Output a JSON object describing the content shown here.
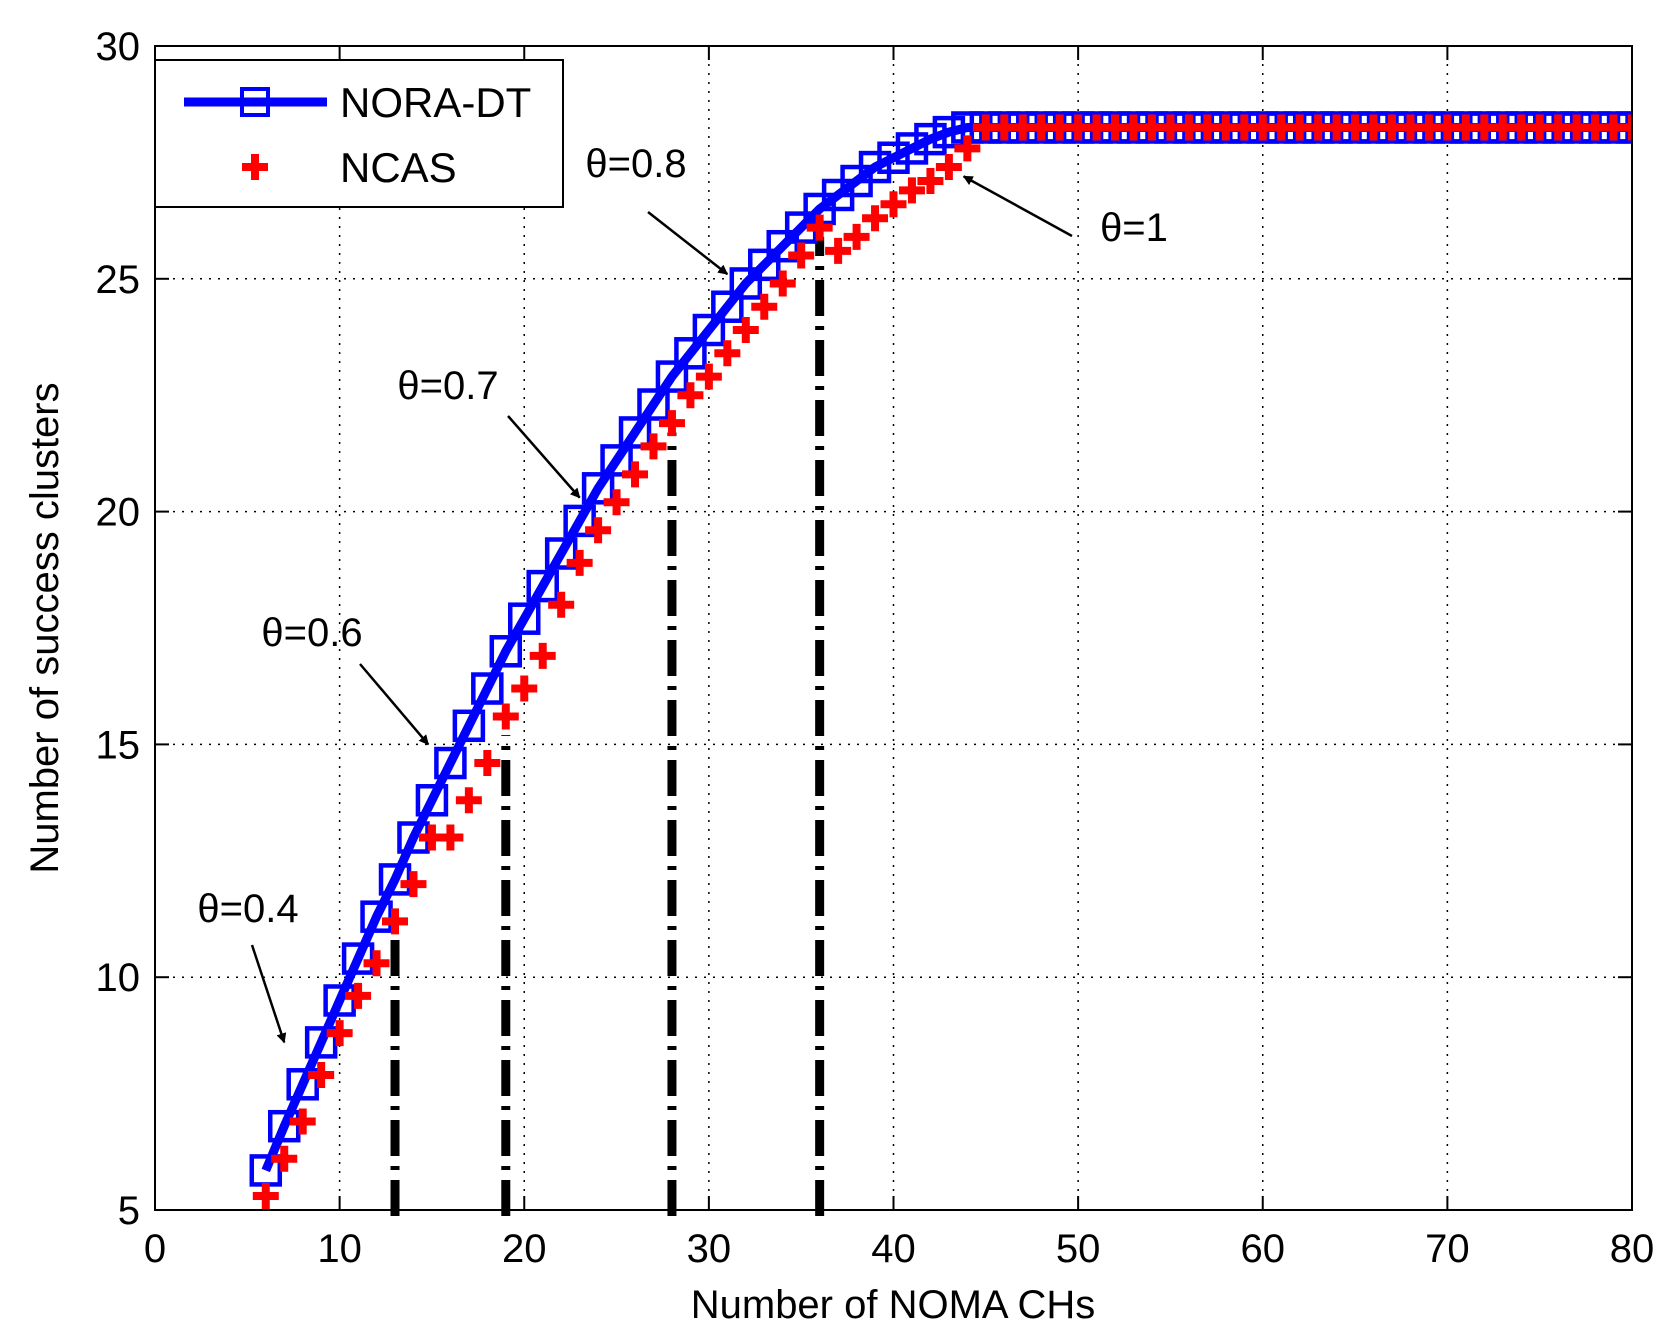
{
  "chart_data": {
    "type": "line",
    "title": "",
    "xlabel": "Number of NOMA CHs",
    "ylabel": "Number of success clusters",
    "xlim": [
      0,
      80
    ],
    "ylim": [
      5,
      30
    ],
    "xticks": [
      0,
      10,
      20,
      30,
      40,
      50,
      60,
      70,
      80
    ],
    "yticks": [
      5,
      10,
      15,
      20,
      25,
      30
    ],
    "grid": true,
    "legend_position": "top-left",
    "series": [
      {
        "name": "NORA-DT",
        "color": "#0000ff",
        "marker": "square",
        "x": [
          6,
          7,
          8,
          9,
          10,
          11,
          12,
          13,
          14,
          15,
          16,
          17,
          18,
          19,
          20,
          21,
          22,
          23,
          24,
          25,
          26,
          27,
          28,
          29,
          30,
          31,
          32,
          33,
          34,
          35,
          36,
          37,
          38,
          39,
          40,
          41,
          42,
          43,
          44,
          45,
          46,
          47,
          48,
          49,
          50,
          51,
          52,
          53,
          54,
          55,
          56,
          57,
          58,
          59,
          60,
          61,
          62,
          63,
          64,
          65,
          66,
          67,
          68,
          69,
          70,
          71,
          72,
          73,
          74,
          75,
          76,
          77,
          78,
          79,
          80
        ],
        "y": [
          5.85,
          6.8,
          7.7,
          8.6,
          9.5,
          10.4,
          11.3,
          12.1,
          13.0,
          13.8,
          14.6,
          15.4,
          16.2,
          17.0,
          17.7,
          18.4,
          19.1,
          19.8,
          20.5,
          21.1,
          21.7,
          22.3,
          22.9,
          23.4,
          23.9,
          24.4,
          24.9,
          25.3,
          25.7,
          26.1,
          26.5,
          26.8,
          27.1,
          27.4,
          27.6,
          27.8,
          28.0,
          28.15,
          28.25,
          28.25,
          28.25,
          28.25,
          28.25,
          28.25,
          28.25,
          28.25,
          28.25,
          28.25,
          28.25,
          28.25,
          28.25,
          28.25,
          28.25,
          28.25,
          28.25,
          28.25,
          28.25,
          28.25,
          28.25,
          28.25,
          28.25,
          28.25,
          28.25,
          28.25,
          28.25,
          28.25,
          28.25,
          28.25,
          28.25,
          28.25,
          28.25,
          28.25,
          28.25,
          28.25,
          28.25
        ]
      },
      {
        "name": "NCAS",
        "color": "#ff0000",
        "marker": "plus",
        "x": [
          6,
          7,
          8,
          9,
          10,
          11,
          12,
          13,
          14,
          15,
          16,
          17,
          18,
          19,
          20,
          21,
          22,
          23,
          24,
          25,
          26,
          27,
          28,
          29,
          30,
          31,
          32,
          33,
          34,
          35,
          36,
          37,
          38,
          39,
          40,
          41,
          42,
          43,
          44,
          45,
          46,
          47,
          48,
          49,
          50,
          51,
          52,
          53,
          54,
          55,
          56,
          57,
          58,
          59,
          60,
          61,
          62,
          63,
          64,
          65,
          66,
          67,
          68,
          69,
          70,
          71,
          72,
          73,
          74,
          75,
          76,
          77,
          78,
          79,
          80
        ],
        "y": [
          5.3,
          6.1,
          6.9,
          7.9,
          8.8,
          9.6,
          10.3,
          11.2,
          12.0,
          13.0,
          13.0,
          13.8,
          14.6,
          15.6,
          16.2,
          16.9,
          18.0,
          18.9,
          19.6,
          20.2,
          20.8,
          21.4,
          21.9,
          22.5,
          22.9,
          23.4,
          23.9,
          24.4,
          24.9,
          25.5,
          26.1,
          25.6,
          25.9,
          26.3,
          26.6,
          26.9,
          27.1,
          27.4,
          27.8,
          28.25,
          28.25,
          28.25,
          28.25,
          28.25,
          28.25,
          28.25,
          28.25,
          28.25,
          28.25,
          28.25,
          28.25,
          28.25,
          28.25,
          28.25,
          28.25,
          28.25,
          28.25,
          28.25,
          28.25,
          28.25,
          28.25,
          28.25,
          28.25,
          28.25,
          28.25,
          28.25,
          28.25,
          28.25,
          28.25,
          28.25,
          28.25,
          28.25,
          28.25,
          28.25,
          28.25
        ]
      }
    ],
    "reference_lines": [
      {
        "x": 13,
        "y_top": 11.0
      },
      {
        "x": 19,
        "y_top": 15.2
      },
      {
        "x": 28,
        "y_top": 21.7
      },
      {
        "x": 36,
        "y_top": 25.9
      }
    ],
    "annotations": [
      {
        "text": "θ=0.4",
        "target": [
          7.0,
          8.6
        ]
      },
      {
        "text": "θ=0.6",
        "target": [
          14.8,
          15.0
        ]
      },
      {
        "text": "θ=0.7",
        "target": [
          23.0,
          20.3
        ]
      },
      {
        "text": "θ=0.8",
        "target": [
          31.0,
          25.1
        ]
      },
      {
        "text": "θ=1",
        "target": [
          43.8,
          27.2
        ]
      }
    ]
  }
}
